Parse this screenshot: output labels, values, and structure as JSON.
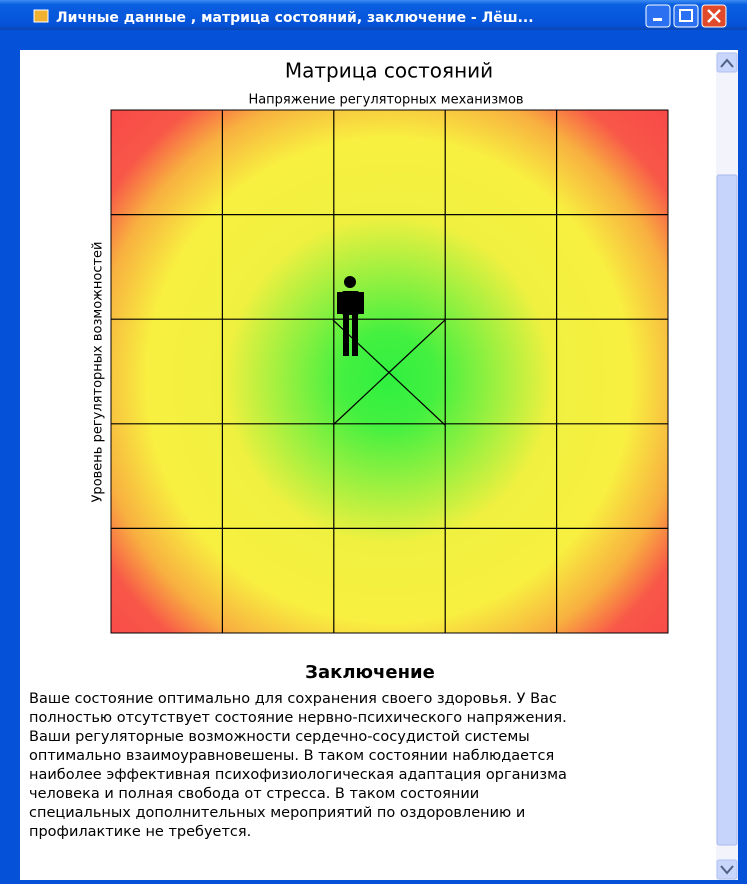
{
  "window": {
    "title": "Личные данные , матрица состояний, заключение - Лёш..."
  },
  "matrix": {
    "title": "Матрица состояний",
    "x_label": "Напряжение  регуляторных  механизмов",
    "y_label": "Уровень  регуляторных  возможностей"
  },
  "conclusion": {
    "heading": "Заключение",
    "lines": [
      "Ваше состояние оптимально для сохранения своего здоровья. У Вас",
      "полностью отсутствует состояние нервно-психического напряжения.",
      "Ваши регуляторные возможности сердечно-сосудистой системы",
      "оптимально взаимоуравновешены. В таком состоянии наблюдается",
      "наиболее эффективная психофизиологическая адаптация организма",
      "человека и полная свобода от стресса. В таком состоянии",
      "специальных дополнительных мероприятий по оздоровлению и",
      "профилактике не требуется."
    ]
  }
}
